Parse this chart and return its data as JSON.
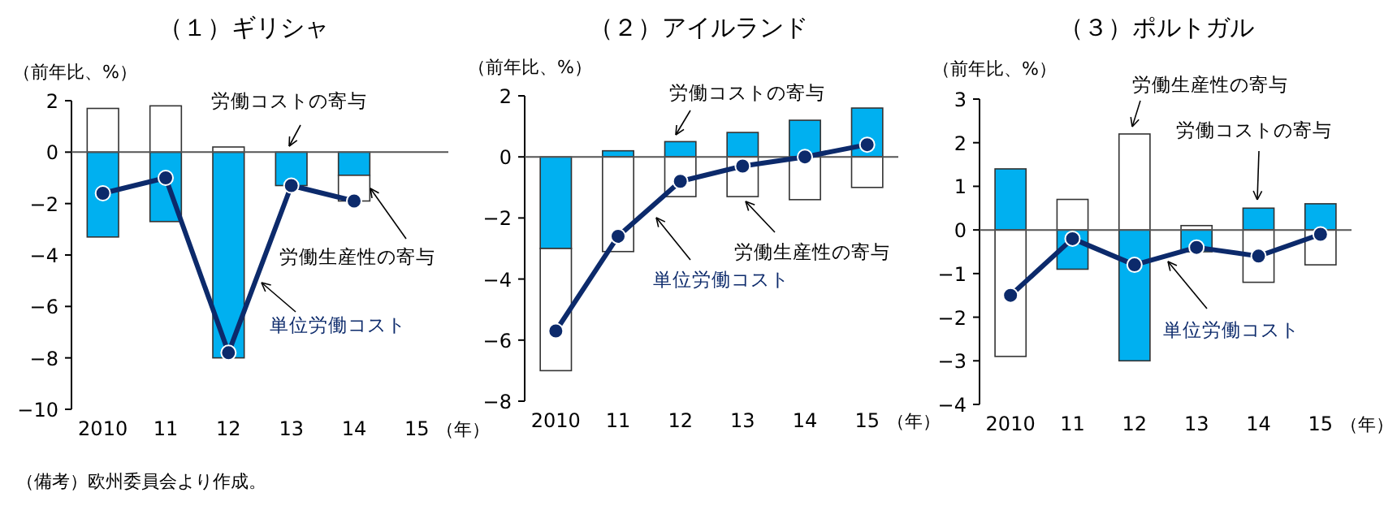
{
  "chart_data": [
    {
      "type": "bar",
      "title": "（１）ギリシャ",
      "ylabel": "（前年比、%）",
      "xlabel": "（年）",
      "categories": [
        "2010",
        "11",
        "12",
        "13",
        "14",
        "15"
      ],
      "stacked": true,
      "ylim": [
        -10,
        2
      ],
      "yticks": [
        -10,
        -8,
        -6,
        -4,
        -2,
        0,
        2
      ],
      "legend": false,
      "marker": "circle",
      "series": [
        {
          "name": "労働コストの寄与",
          "color": "#00b0f0",
          "values": [
            -3.3,
            -2.7,
            -8.0,
            -1.3,
            -0.9,
            null
          ]
        },
        {
          "name": "労働生産性の寄与",
          "color": "#ffffff",
          "values": [
            1.7,
            1.8,
            0.2,
            0,
            -1.0,
            null
          ]
        },
        {
          "name": "単位労働コスト",
          "type": "line",
          "color": "#0c2a6b",
          "values": [
            -1.6,
            -1.0,
            -7.8,
            -1.3,
            -1.9,
            null
          ]
        }
      ],
      "annotations": [
        "（備考）欧州委員会より作成。"
      ]
    },
    {
      "type": "bar",
      "title": "（２）アイルランド",
      "ylabel": "（前年比、%）",
      "xlabel": "（年）",
      "categories": [
        "2010",
        "11",
        "12",
        "13",
        "14",
        "15"
      ],
      "stacked": true,
      "ylim": [
        -8,
        2
      ],
      "yticks": [
        -8,
        -6,
        -4,
        -2,
        0,
        2
      ],
      "legend": false,
      "marker": "circle",
      "series": [
        {
          "name": "労働コストの寄与",
          "color": "#00b0f0",
          "values": [
            -3.0,
            0.2,
            0.5,
            0.8,
            1.2,
            1.6
          ]
        },
        {
          "name": "労働生産性の寄与",
          "color": "#ffffff",
          "values": [
            -4.0,
            -3.1,
            -1.3,
            -1.3,
            -1.4,
            -1.0
          ]
        },
        {
          "name": "単位労働コスト",
          "type": "line",
          "color": "#0c2a6b",
          "values": [
            -5.7,
            -2.6,
            -0.8,
            -0.3,
            0.0,
            0.4
          ]
        }
      ]
    },
    {
      "type": "bar",
      "title": "（３）ポルトガル",
      "ylabel": "（前年比、%）",
      "xlabel": "（年）",
      "categories": [
        "2010",
        "11",
        "12",
        "13",
        "14",
        "15"
      ],
      "stacked": true,
      "ylim": [
        -4,
        3
      ],
      "yticks": [
        -4,
        -3,
        -2,
        -1,
        0,
        1,
        2,
        3
      ],
      "legend": false,
      "marker": "circle",
      "series": [
        {
          "name": "労働コストの寄与",
          "color": "#00b0f0",
          "values": [
            1.4,
            -0.9,
            -3.0,
            -0.5,
            0.5,
            0.6
          ]
        },
        {
          "name": "労働生産性の寄与",
          "color": "#ffffff",
          "values": [
            -2.9,
            0.7,
            2.2,
            0.1,
            -1.2,
            -0.8
          ]
        },
        {
          "name": "単位労働コスト",
          "type": "line",
          "color": "#0c2a6b",
          "values": [
            -1.5,
            -0.2,
            -0.8,
            -0.4,
            -0.6,
            -0.1
          ]
        }
      ]
    }
  ]
}
